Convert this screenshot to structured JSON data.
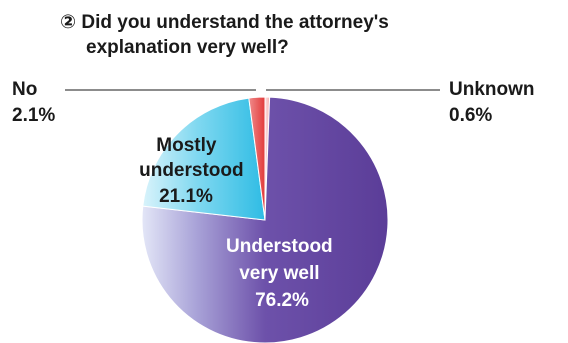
{
  "chart_data": {
    "type": "pie",
    "title": "② Did you understand the attorney's explanation very well?",
    "title_lines": [
      "② Did you understand the attorney's",
      "explanation very well?"
    ],
    "slices": [
      {
        "key": "understood",
        "label_lines": [
          "Understood",
          "very well"
        ],
        "value": 76.2,
        "value_label": "76.2%",
        "color": "#5b3d98",
        "label_color": "#ffffff"
      },
      {
        "key": "mostly",
        "label_lines": [
          "Mostly",
          "understood"
        ],
        "value": 21.1,
        "value_label": "21.1%",
        "color": "#35bfe6",
        "label_color": "#1a1a1a"
      },
      {
        "key": "no",
        "label_lines": [
          "No"
        ],
        "value": 2.1,
        "value_label": "2.1%",
        "color": "#e23a3a",
        "label_color": "#1a1a1a"
      },
      {
        "key": "unknown",
        "label_lines": [
          "Unknown"
        ],
        "value": 0.6,
        "value_label": "0.6%",
        "color": "#f6b3b3",
        "label_color": "#1a1a1a"
      }
    ],
    "order": "clockwise from 12 o'clock: Unknown, Understood very well, Mostly understood, No",
    "legend": "none (labels on slices / leader lines)"
  }
}
